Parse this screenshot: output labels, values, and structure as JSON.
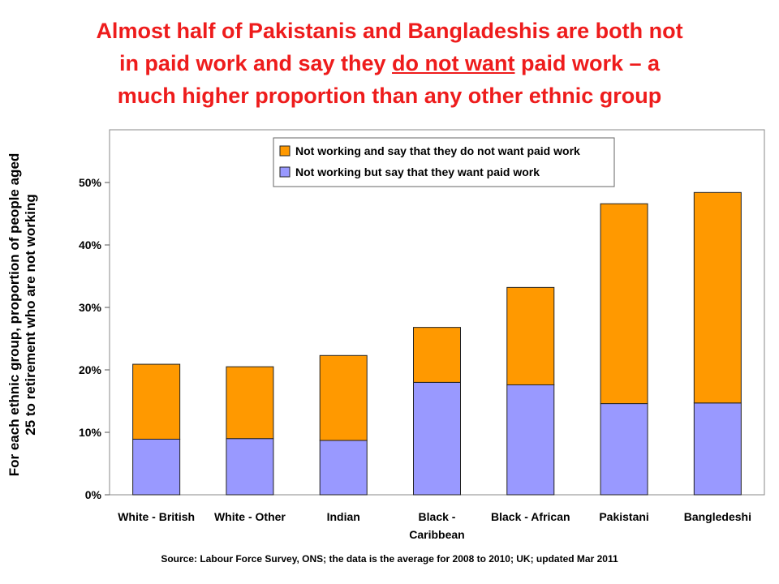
{
  "slide": {
    "title_line1": "Almost half of Pakistanis and Bangladeshis are both not",
    "title_line2_pre": "in paid work and say they ",
    "title_line2_emph": "do not want",
    "title_line2_post": " paid work – a",
    "title_line3": "much higher proportion than any other ethnic group",
    "source": "Source: Labour Force Survey, ONS; the data is the average for 2008 to 2010; UK; updated Mar 2011"
  },
  "chart_data": {
    "type": "bar",
    "stacked": true,
    "categories": [
      "White - British",
      "White - Other",
      "Indian",
      "Black - Caribbean",
      "Black - African",
      "Pakistani",
      "Bangledeshi"
    ],
    "category_lines": [
      [
        "White - British"
      ],
      [
        "White - Other"
      ],
      [
        "Indian"
      ],
      [
        "Black -",
        "Caribbean"
      ],
      [
        "Black - African"
      ],
      [
        "Pakistani"
      ],
      [
        "Bangledeshi"
      ]
    ],
    "series": [
      {
        "name": "Not working but say that they want paid work",
        "color": "#9999ff",
        "values": [
          8.9,
          9.0,
          8.7,
          18.0,
          17.6,
          14.6,
          14.7
        ]
      },
      {
        "name": "Not working and say that they do not want paid work",
        "color": "#ff9900",
        "values": [
          12.0,
          11.5,
          13.6,
          8.8,
          15.6,
          32.0,
          33.7
        ]
      }
    ],
    "legend_order": [
      1,
      0
    ],
    "legend_position": "top-center",
    "ylabel": "For each ethnic group, proportion of people aged 25 to retirement who are not working",
    "ylim": [
      0,
      50
    ],
    "yticks": [
      0,
      10,
      20,
      30,
      40,
      50
    ],
    "ytick_labels": [
      "0%",
      "10%",
      "20%",
      "30%",
      "40%",
      "50%"
    ],
    "grid": false
  }
}
